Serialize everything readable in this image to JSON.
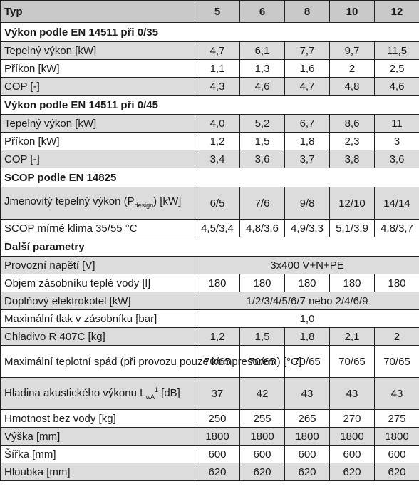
{
  "header": {
    "label": "Typ",
    "models": [
      "5",
      "6",
      "8",
      "10",
      "12"
    ]
  },
  "sections": [
    {
      "title": "Výkon podle EN 14511 při 0/35"
    },
    {
      "title": "Výkon podle EN 14511 při 0/45"
    },
    {
      "title": "SCOP podle EN 14825"
    },
    {
      "title": "Další parametry"
    }
  ],
  "rows": [
    {
      "label": "Tepelný výkon [kW]",
      "values": [
        "4,7",
        "6,1",
        "7,7",
        "9,7",
        "11,5"
      ]
    },
    {
      "label": "Příkon [kW]",
      "values": [
        "1,1",
        "1,3",
        "1,6",
        "2",
        "2,5"
      ]
    },
    {
      "label": "COP [-]",
      "values": [
        "4,3",
        "4,6",
        "4,7",
        "4,8",
        "4,6"
      ]
    },
    {
      "label": "Tepelný výkon [kW]",
      "values": [
        "4,0",
        "5,2",
        "6,7",
        "8,6",
        "11"
      ]
    },
    {
      "label": "Příkon [kW]",
      "values": [
        "1,2",
        "1,5",
        "1,8",
        "2,3",
        "3"
      ]
    },
    {
      "label": "COP [-]",
      "values": [
        "3,4",
        "3,6",
        "3,7",
        "3,8",
        "3,6"
      ]
    },
    {
      "label_pre": "Jmenovitý tepelný výkon (P",
      "label_sub": "design",
      "label_post": ") [kW]",
      "values": [
        "6/5",
        "7/6",
        "9/8",
        "12/10",
        "14/14"
      ]
    },
    {
      "label": "SCOP mírné klima 35/55 °C",
      "values": [
        "4,5/3,4",
        "4,8/3,6",
        "4,9/3,3",
        "5,1/3,9",
        "4,8/3,7"
      ]
    },
    {
      "label": "Provozní napětí [V]",
      "value": "3x400 V+N+PE"
    },
    {
      "label": "Objem zásobníku teplé vody [l]",
      "values": [
        "180",
        "180",
        "180",
        "180",
        "180"
      ]
    },
    {
      "label": "Doplňový elektrokotel [kW]",
      "value": "1/2/3/4/5/6/7 nebo 2/4/6/9"
    },
    {
      "label": "Maximální tlak v zásobníku [bar]",
      "value": "1,0"
    },
    {
      "label": "Chladivo R 407C [kg]",
      "values": [
        "1,2",
        "1,5",
        "1,8",
        "2,1",
        "2"
      ]
    },
    {
      "label": "Maximální teplotní spád (při provozu pouze kompresorem) [°C]",
      "values": [
        "70/65",
        "70/65",
        "70/65",
        "70/65",
        "70/65"
      ]
    },
    {
      "label_pre": "Hladina akustického výkonu L",
      "label_sub": "wA",
      "label_sup": "1",
      "label_post": " [dB]",
      "values": [
        "37",
        "42",
        "43",
        "43",
        "43"
      ]
    },
    {
      "label": "Hmotnost bez vody [kg]",
      "values": [
        "250",
        "255",
        "265",
        "270",
        "275"
      ]
    },
    {
      "label": "Výška [mm]",
      "values": [
        "1800",
        "1800",
        "1800",
        "1800",
        "1800"
      ]
    },
    {
      "label": "Šířka [mm]",
      "values": [
        "600",
        "600",
        "600",
        "600",
        "600"
      ]
    },
    {
      "label": "Hloubka [mm]",
      "values": [
        "620",
        "620",
        "620",
        "620",
        "620"
      ]
    }
  ]
}
